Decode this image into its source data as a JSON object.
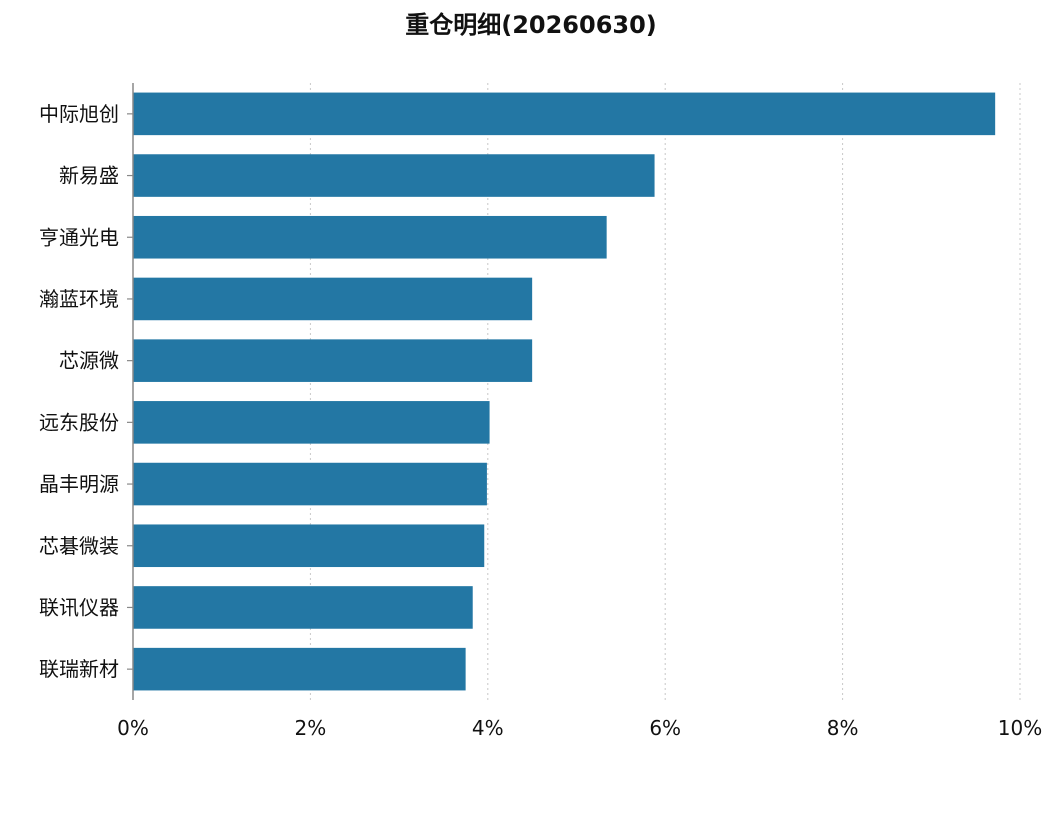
{
  "chart_data": {
    "type": "bar",
    "orientation": "horizontal",
    "title": "重仓明细(20260630)",
    "categories": [
      "中际旭创",
      "新易盛",
      "亨通光电",
      "瀚蓝环境",
      "芯源微",
      "远东股份",
      "晶丰明源",
      "芯碁微装",
      "联讯仪器",
      "联瑞新材"
    ],
    "values": [
      9.72,
      5.88,
      5.34,
      4.5,
      4.5,
      4.02,
      3.99,
      3.96,
      3.83,
      3.75
    ],
    "xlim": [
      0,
      10
    ],
    "xticks": [
      0,
      2,
      4,
      6,
      8,
      10
    ],
    "xtick_labels": [
      "0%",
      "2%",
      "4%",
      "6%",
      "8%",
      "10%"
    ],
    "xlabel": "",
    "ylabel": "",
    "grid": "vertical dotted",
    "legend": "none",
    "bar_color": "#2377a4"
  }
}
